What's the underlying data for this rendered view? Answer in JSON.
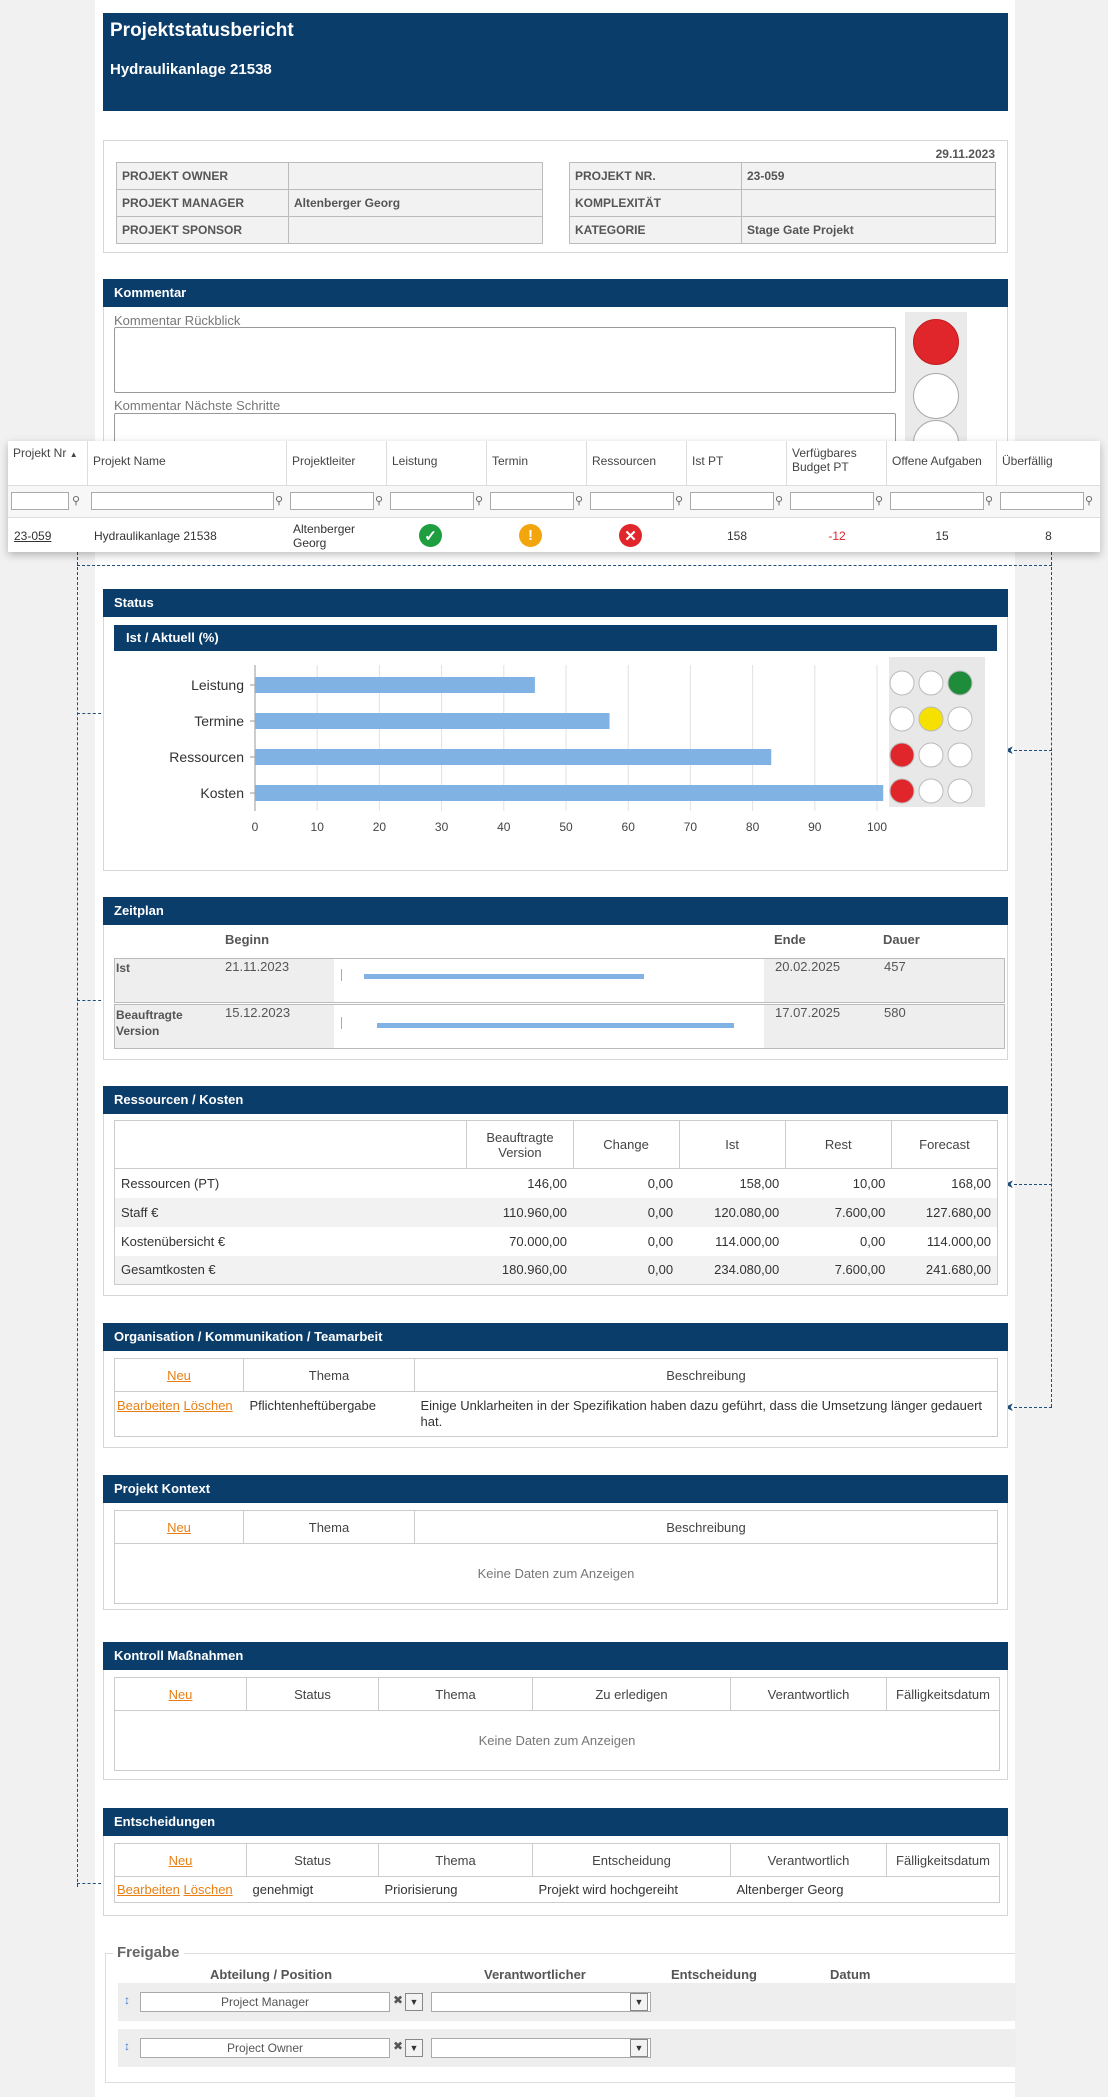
{
  "header": {
    "title": "Projektstatusbericht",
    "subtitle": "Hydraulikanlage 21538"
  },
  "info": {
    "date": "29.11.2023",
    "left": [
      {
        "label": "PROJEKT OWNER",
        "value": ""
      },
      {
        "label": "PROJEKT MANAGER",
        "value": "Altenberger Georg"
      },
      {
        "label": "PROJEKT SPONSOR",
        "value": ""
      }
    ],
    "right": [
      {
        "label": "PROJEKT NR.",
        "value": "23-059"
      },
      {
        "label": "KOMPLEXITÄT",
        "value": ""
      },
      {
        "label": "KATEGORIE",
        "value": "Stage Gate Projekt"
      }
    ]
  },
  "kommentar": {
    "title": "Kommentar",
    "rueckblick_label": "Kommentar Rückblick",
    "naechste_label": "Kommentar Nächste Schritte"
  },
  "grid": {
    "columns": [
      "Projekt Nr",
      "Projekt Name",
      "Projektleiter",
      "Leistung",
      "Termin",
      "Ressourcen",
      "Ist PT",
      "Verfügbares Budget PT",
      "Offene Aufgaben",
      "Überfällig"
    ],
    "row": {
      "nr": "23-059",
      "name": "Hydraulikanlage 21538",
      "leiter": "Altenberger Georg",
      "leistung": "ok",
      "termin": "warning",
      "ressourcen": "error",
      "ist_pt": "158",
      "budget_pt": "-12",
      "offene": "15",
      "ueberfaellig": "8"
    },
    "colors": {
      "ok": "#1e9e3e",
      "warning": "#f2a50c",
      "error": "#e0262a",
      "negative": "#e0262a"
    }
  },
  "status": {
    "title": "Status",
    "chart_title": "Ist / Aktuell (%)",
    "lights": [
      [
        "off",
        "off",
        "green"
      ],
      [
        "off",
        "yellow",
        "off"
      ],
      [
        "red",
        "off",
        "off"
      ],
      [
        "red",
        "off",
        "off"
      ]
    ]
  },
  "chart_data": {
    "type": "bar",
    "orientation": "horizontal",
    "title": "Ist / Aktuell (%)",
    "categories": [
      "Leistung",
      "Termine",
      "Ressourcen",
      "Kosten"
    ],
    "values": [
      45,
      57,
      83,
      101
    ],
    "xlim": [
      0,
      100
    ],
    "ticks": [
      0,
      10,
      20,
      30,
      40,
      50,
      60,
      70,
      80,
      90,
      100
    ],
    "grid": true,
    "bar_color": "#80b3e3"
  },
  "zeitplan": {
    "title": "Zeitplan",
    "col_begin": "Beginn",
    "col_end": "Ende",
    "col_duration": "Dauer",
    "rows": [
      {
        "label": "Ist",
        "begin": "21.11.2023",
        "end": "20.02.2025",
        "duration": "457",
        "bar_start": 0.07,
        "bar_end": 0.72
      },
      {
        "label": "Beauftragte Version",
        "begin": "15.12.2023",
        "end": "17.07.2025",
        "duration": "580",
        "bar_start": 0.1,
        "bar_end": 0.93
      }
    ]
  },
  "ressourcen": {
    "title": "Ressourcen / Kosten",
    "headers": [
      "",
      "Beauftragte Version",
      "Change",
      "Ist",
      "Rest",
      "Forecast"
    ],
    "rows": [
      [
        "Ressourcen (PT)",
        "146,00",
        "0,00",
        "158,00",
        "10,00",
        "168,00"
      ],
      [
        "Staff €",
        "110.960,00",
        "0,00",
        "120.080,00",
        "7.600,00",
        "127.680,00"
      ],
      [
        "Kostenübersicht €",
        "70.000,00",
        "0,00",
        "114.000,00",
        "0,00",
        "114.000,00"
      ],
      [
        "Gesamtkosten €",
        "180.960,00",
        "0,00",
        "234.080,00",
        "7.600,00",
        "241.680,00"
      ]
    ]
  },
  "organisation": {
    "title": "Organisation / Kommunikation / Teamarbeit",
    "new": "Neu",
    "col_thema": "Thema",
    "col_beschreibung": "Beschreibung",
    "edit": "Bearbeiten",
    "delete": "Löschen",
    "row_thema": "Pflichtenheftübergabe",
    "row_beschreibung": "Einige Unklarheiten in der Spezifikation haben dazu geführt, dass die Umsetzung länger gedauert hat."
  },
  "kontext": {
    "title": "Projekt Kontext",
    "new": "Neu",
    "col_thema": "Thema",
    "col_beschreibung": "Beschreibung",
    "empty": "Keine Daten zum Anzeigen"
  },
  "kontroll": {
    "title": "Kontroll Maßnahmen",
    "new": "Neu",
    "cols": [
      "Status",
      "Thema",
      "Zu erledigen",
      "Verantwortlich",
      "Fälligkeitsdatum"
    ],
    "empty": "Keine Daten zum Anzeigen"
  },
  "entscheidungen": {
    "title": "Entscheidungen",
    "new": "Neu",
    "cols": [
      "Status",
      "Thema",
      "Entscheidung",
      "Verantwortlich",
      "Fälligkeitsdatum"
    ],
    "edit": "Bearbeiten",
    "delete": "Löschen",
    "row": [
      "genehmigt",
      "Priorisierung",
      "Projekt wird hochgereiht",
      "Altenberger Georg",
      ""
    ]
  },
  "freigabe": {
    "title": "Freigabe",
    "cols": [
      "Abteilung / Position",
      "Verantwortlicher",
      "Entscheidung",
      "Datum"
    ],
    "rows": [
      {
        "position": "Project Manager",
        "verantwortlicher": ""
      },
      {
        "position": "Project Owner",
        "verantwortlicher": ""
      }
    ]
  }
}
